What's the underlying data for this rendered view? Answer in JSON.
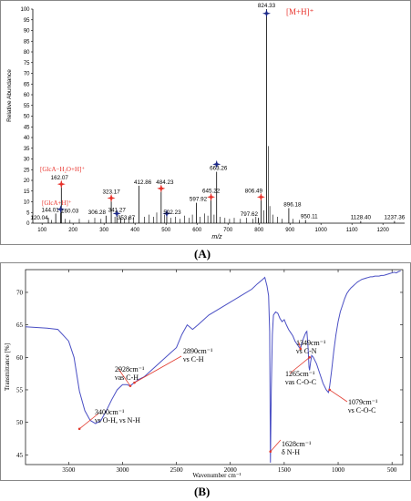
{
  "chart_data": [
    {
      "type": "bar",
      "ylabel": "Relative Abundance",
      "xlabel": "m/z",
      "xlim": [
        70,
        1270
      ],
      "ylim": [
        0,
        100
      ],
      "x_ticks": [
        100,
        200,
        300,
        400,
        500,
        600,
        700,
        800,
        900,
        1000,
        1100,
        1200
      ],
      "y_ticks": [
        0,
        5,
        10,
        15,
        20,
        25,
        30,
        35,
        40,
        45,
        50,
        55,
        60,
        65,
        70,
        75,
        80,
        85,
        90,
        95,
        100
      ],
      "peaks": [
        {
          "mz": 120.04,
          "intensity": 2.5,
          "label": "120.04"
        },
        {
          "mz": 144.01,
          "intensity": 4.5,
          "label": "144.01"
        },
        {
          "mz": 160.03,
          "intensity": 5.0,
          "label": "160.03"
        },
        {
          "mz": 162.07,
          "intensity": 19.5,
          "label": "162.07"
        },
        {
          "mz": 306.28,
          "intensity": 3.5,
          "label": "306.28"
        },
        {
          "mz": 323.17,
          "intensity": 13.0,
          "label": "323.17"
        },
        {
          "mz": 341.27,
          "intensity": 4.5,
          "label": "341.27"
        },
        {
          "mz": 353.87,
          "intensity": 2.5,
          "label": "353.87"
        },
        {
          "mz": 412.86,
          "intensity": 17.5,
          "label": "412.86"
        },
        {
          "mz": 484.23,
          "intensity": 17.5,
          "label": "484.23"
        },
        {
          "mz": 502.23,
          "intensity": 3.5,
          "label": "502.23"
        },
        {
          "mz": 597.92,
          "intensity": 9.5,
          "label": "597.92"
        },
        {
          "mz": 645.22,
          "intensity": 13.5,
          "label": "645.22"
        },
        {
          "mz": 663.26,
          "intensity": 24.0,
          "label": "663.26"
        },
        {
          "mz": 797.62,
          "intensity": 2.5,
          "label": "797.62"
        },
        {
          "mz": 806.49,
          "intensity": 13.5,
          "label": "806.49"
        },
        {
          "mz": 824.33,
          "intensity": 100,
          "label": "824.33"
        },
        {
          "mz": 896.18,
          "intensity": 7.0,
          "label": "896.18"
        },
        {
          "mz": 950.11,
          "intensity": 1.5,
          "label": "950.11"
        },
        {
          "mz": 1128.4,
          "intensity": 1.0,
          "label": "1128.40"
        },
        {
          "mz": 1237.36,
          "intensity": 1.0,
          "label": "1237.36"
        }
      ],
      "minor_peaks": [
        [
          130,
          1.5
        ],
        [
          175,
          2.0
        ],
        [
          190,
          1.5
        ],
        [
          220,
          2.0
        ],
        [
          250,
          1.5
        ],
        [
          270,
          2.5
        ],
        [
          290,
          2.0
        ],
        [
          335,
          3.0
        ],
        [
          365,
          2.0
        ],
        [
          380,
          3.0
        ],
        [
          395,
          2.5
        ],
        [
          430,
          3.0
        ],
        [
          445,
          4.0
        ],
        [
          460,
          3.0
        ],
        [
          470,
          5.0
        ],
        [
          495,
          4.0
        ],
        [
          515,
          2.5
        ],
        [
          530,
          3.0
        ],
        [
          545,
          2.0
        ],
        [
          560,
          3.5
        ],
        [
          575,
          2.5
        ],
        [
          585,
          4.0
        ],
        [
          610,
          3.0
        ],
        [
          625,
          4.5
        ],
        [
          635,
          3.5
        ],
        [
          655,
          4.0
        ],
        [
          675,
          3.0
        ],
        [
          690,
          2.5
        ],
        [
          705,
          2.0
        ],
        [
          720,
          2.5
        ],
        [
          740,
          2.0
        ],
        [
          760,
          2.5
        ],
        [
          780,
          2.0
        ],
        [
          790,
          3.0
        ],
        [
          815,
          6.0
        ],
        [
          830,
          36.0
        ],
        [
          835,
          8.0
        ],
        [
          845,
          4.0
        ],
        [
          860,
          3.0
        ],
        [
          875,
          2.0
        ],
        [
          910,
          2.0
        ],
        [
          930,
          1.5
        ]
      ],
      "annotations": {
        "mh": "[M+H]⁺",
        "glca_h2o": "[GlcA−H₂O+H]⁺",
        "glca": "[GlcA+H]⁺"
      },
      "red_star_mz": [
        162.07,
        323.17,
        484.23,
        645.22,
        806.49
      ],
      "blue_star_mz": [
        160.03,
        341.27,
        502.23,
        663.26,
        824.33
      ],
      "red_star_color": "#e8312a",
      "blue_star_color": "#1d2a8a",
      "annotation_color": "#e8312a"
    },
    {
      "type": "line",
      "xlabel": "Wavenumber cm⁻¹",
      "ylabel": "Transmittance [%]",
      "xlim": [
        3900,
        400
      ],
      "ylim": [
        43.5,
        73.5
      ],
      "x_ticks": [
        3500,
        3000,
        2500,
        2000,
        1500,
        1000,
        500
      ],
      "y_ticks": [
        45,
        50,
        55,
        60,
        65,
        70
      ],
      "line_color": "#4a4fc4",
      "x": [
        3900,
        3800,
        3700,
        3600,
        3500,
        3450,
        3400,
        3350,
        3300,
        3250,
        3200,
        3150,
        3100,
        3050,
        3000,
        2960,
        2928,
        2900,
        2890,
        2850,
        2800,
        2700,
        2600,
        2500,
        2450,
        2400,
        2350,
        2300,
        2200,
        2100,
        2000,
        1900,
        1800,
        1750,
        1700,
        1680,
        1660,
        1645,
        1635,
        1628,
        1620,
        1610,
        1600,
        1580,
        1560,
        1540,
        1520,
        1500,
        1480,
        1460,
        1440,
        1420,
        1400,
        1380,
        1360,
        1349,
        1340,
        1320,
        1300,
        1290,
        1280,
        1270,
        1265,
        1255,
        1245,
        1230,
        1200,
        1170,
        1140,
        1110,
        1090,
        1079,
        1060,
        1040,
        1020,
        1000,
        980,
        960,
        940,
        920,
        900,
        880,
        860,
        840,
        820,
        800,
        780,
        760,
        740,
        720,
        700,
        680,
        660,
        640,
        620,
        600,
        580,
        560,
        540,
        520,
        500,
        480,
        460,
        440,
        420
      ],
      "y": [
        64.7,
        64.6,
        64.5,
        64.3,
        62.5,
        60.0,
        54.8,
        51.8,
        50.3,
        49.8,
        50.3,
        51.8,
        53.5,
        55.0,
        55.8,
        55.8,
        55.6,
        56.0,
        56.1,
        56.6,
        57.0,
        58.5,
        60.0,
        61.5,
        63.5,
        65.0,
        64.3,
        65.0,
        66.5,
        67.5,
        68.5,
        69.5,
        70.5,
        71.3,
        72.0,
        72.3,
        71.0,
        69.5,
        64.0,
        43.8,
        55.0,
        63.5,
        66.5,
        67.0,
        66.8,
        66.0,
        65.5,
        65.8,
        65.0,
        64.3,
        63.8,
        63.3,
        62.5,
        62.0,
        61.5,
        61.3,
        62.0,
        63.0,
        63.8,
        64.0,
        61.8,
        58.5,
        58.0,
        59.3,
        60.3,
        60.0,
        59.0,
        57.5,
        56.0,
        55.0,
        54.6,
        55.5,
        58.0,
        61.0,
        63.5,
        65.5,
        67.0,
        68.0,
        69.0,
        69.8,
        70.3,
        70.7,
        71.0,
        71.3,
        71.6,
        71.8,
        72.0,
        72.1,
        72.2,
        72.3,
        72.4,
        72.4,
        72.5,
        72.5,
        72.5,
        72.6,
        72.6,
        72.7,
        72.8,
        72.9,
        73.0,
        73.1,
        73.0,
        73.2,
        73.3
      ],
      "annotations": [
        {
          "key": "a3400",
          "x": 3400,
          "y": 49.0,
          "l1": "3400cm⁻¹",
          "l2": "νs O-H, νs N-H"
        },
        {
          "key": "a2928",
          "x": 2928,
          "y": 55.6,
          "l1": "2928cm⁻¹",
          "l2": "νas C-H"
        },
        {
          "key": "a2890",
          "x": 2890,
          "y": 56.1,
          "l1": "2890cm⁻¹",
          "l2": "νs C-H"
        },
        {
          "key": "a1628",
          "x": 1628,
          "y": 45.5,
          "l1": "1628cm⁻¹",
          "l2": "δ N-H"
        },
        {
          "key": "a1349",
          "x": 1349,
          "y": 61.3,
          "l1": "1349cm⁻¹",
          "l2": "νs C-N"
        },
        {
          "key": "a1265",
          "x": 1265,
          "y": 60.0,
          "l1": "1265cm⁻¹",
          "l2": "νas C-O-C"
        },
        {
          "key": "a1079",
          "x": 1079,
          "y": 55.0,
          "l1": "1079cm⁻¹",
          "l2": "νs C-O-C"
        }
      ],
      "arrow_color": "#e23a2e"
    }
  ],
  "captions": {
    "a": "(A)",
    "b": "(B)"
  }
}
